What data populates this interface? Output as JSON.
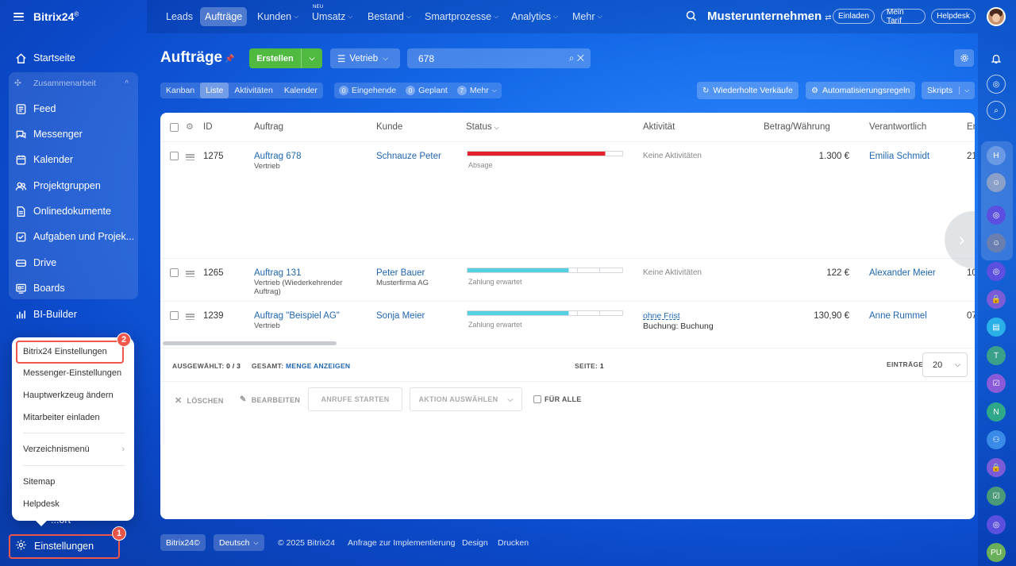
{
  "app": {
    "name": "Bitrix24",
    "logo_mark": "©"
  },
  "topnav": {
    "items": [
      "Leads",
      "Aufträge",
      "Kunden",
      "Umsatz",
      "Bestand",
      "Smartprozesse",
      "Analytics",
      "Mehr"
    ],
    "new_tag": "NEU",
    "company": "Musterunternehmen",
    "company_icon": "⇄",
    "invite": "Einladen",
    "plan": "Mein Tarif",
    "helpdesk": "Helpdesk"
  },
  "sidebar": {
    "home": "Startseite",
    "group_label": "Zusammenarbeit",
    "items": [
      "Feed",
      "Messenger",
      "Kalender",
      "Projektgruppen",
      "Onlinedokumente",
      "Aufgaben und Projek...",
      "Drive",
      "Boards"
    ],
    "bi_builder": "BI-Builder",
    "hidden_item": "...ort",
    "settings": "Einstellungen"
  },
  "popup": {
    "items": [
      "Bitrix24 Einstellungen",
      "Messenger-Einstellungen",
      "Hauptwerkzeug ändern",
      "Mitarbeiter einladen"
    ],
    "directory_menu": "Verzeichnismenü",
    "sitemap": "Sitemap",
    "helpdesk": "Helpdesk"
  },
  "annotations": {
    "step1": "1",
    "step2": "2",
    "color": "#f0574b"
  },
  "page": {
    "title": "Aufträge",
    "create": "Erstellen",
    "filter": "Vetrieb",
    "search_value": "678",
    "view_tabs": [
      "Kanban",
      "Liste",
      "Aktivitäten",
      "Kalender"
    ],
    "active_view": "Liste",
    "counters": [
      {
        "n": "0",
        "label": "Eingehende"
      },
      {
        "n": "0",
        "label": "Geplant"
      },
      {
        "n": "7",
        "label": "Mehr"
      }
    ],
    "repeat_sales": "Wiederholte Verkäufe",
    "automation": "Automatisierungsregeln",
    "scripts": "Skripts"
  },
  "table": {
    "headers": [
      "ID",
      "Auftrag",
      "Kunde",
      "Status",
      "Aktivität",
      "Betrag/Währung",
      "Verantwortlich",
      "Er"
    ],
    "rows": [
      {
        "id": "1275",
        "deal": "Auftrag 678",
        "deal_sub": "Vertrieb",
        "client": "Schnauze Peter",
        "client_sub": "",
        "status": "Absage",
        "status_color": "#e5202a",
        "status_fill": 0.89,
        "activity": "Keine Aktivitäten",
        "activity_sub": "",
        "amount": "1.300 €",
        "owner": "Emilia Schmidt",
        "extra": "21"
      },
      {
        "id": "1265",
        "deal": "Auftrag 131",
        "deal_sub": "Vertrieb (Wiederkehrender Auftrag)",
        "client": "Peter Bauer",
        "client_sub": "Musterfirma AG",
        "status": "Zahlung erwartet",
        "status_color": "#55d0e0",
        "status_fill": 0.66,
        "activity": "Keine Aktivitäten",
        "activity_sub": "",
        "amount": "122 €",
        "owner": "Alexander Meier",
        "extra": "10"
      },
      {
        "id": "1239",
        "deal": "Auftrag \"Beispiel AG\"",
        "deal_sub": "Vertrieb",
        "client": "Sonja Meier",
        "client_sub": "",
        "status": "Zahlung erwartet",
        "status_color": "#55d0e0",
        "status_fill": 0.66,
        "activity": "ohne Frist",
        "activity_sub": "Buchung: Buchung",
        "amount": "130,90 €",
        "owner": "Anne Rummel",
        "extra": "07"
      }
    ],
    "selected_label": "AUSGEWÄHLT:",
    "selected_value": "0 / 3",
    "total_label": "GESAMT:",
    "total_value": "MENGE ANZEIGEN",
    "page_label": "SEITE:",
    "page_value": "1",
    "entries_label": "EINTRÄGE",
    "entries_value": "20",
    "actions": {
      "delete": "LÖSCHEN",
      "edit": "BEARBEITEN",
      "calls": "ANRUFE STARTEN",
      "choose": "AKTION AUSWÄHLEN",
      "for_all": "FÜR ALLE"
    }
  },
  "footer": {
    "brand": "Bitrix24©",
    "language": "Deutsch",
    "copyright": "© 2025 Bitrix24",
    "implementation": "Anfrage zur Implementierung",
    "design": "Design",
    "print": "Drucken"
  },
  "rail": {
    "h": "H",
    "t": "T",
    "n": "N",
    "pu": "PU"
  }
}
